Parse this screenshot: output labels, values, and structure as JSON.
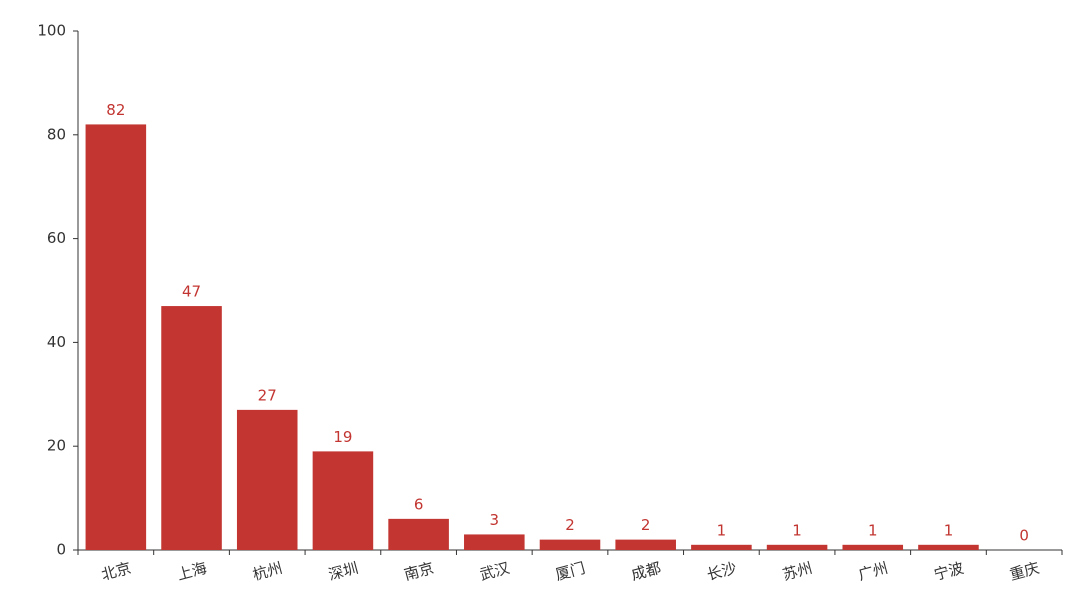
{
  "chart_data": {
    "type": "bar",
    "categories": [
      "北京",
      "上海",
      "杭州",
      "深圳",
      "南京",
      "武汉",
      "厦门",
      "成都",
      "长沙",
      "苏州",
      "广州",
      "宁波",
      "重庆"
    ],
    "values": [
      82,
      47,
      27,
      19,
      6,
      3,
      2,
      2,
      1,
      1,
      1,
      1,
      0
    ],
    "color": "#c23531",
    "ylim": [
      0,
      100
    ],
    "yticks": [
      0,
      20,
      40,
      60,
      80,
      100
    ],
    "grid": false
  }
}
